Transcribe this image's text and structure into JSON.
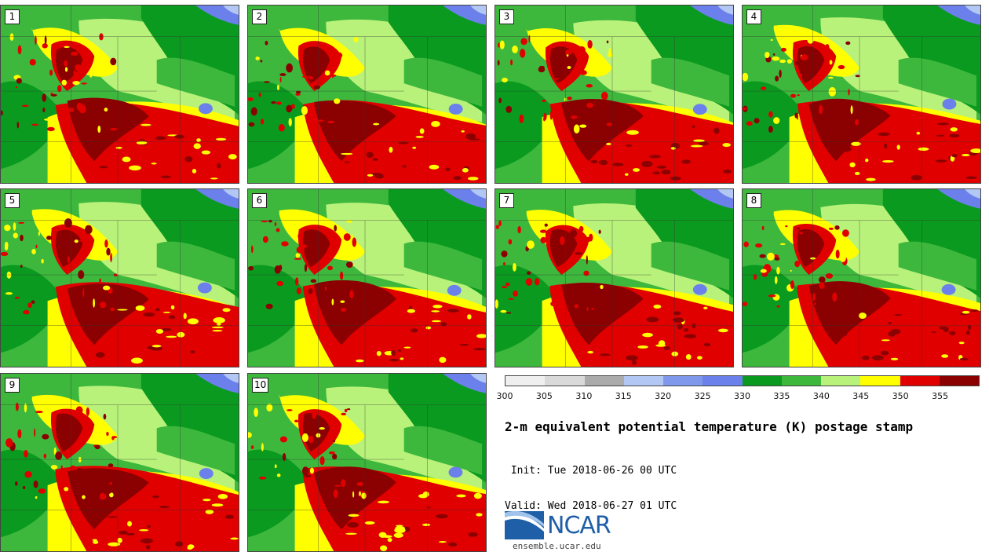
{
  "panels": [
    {
      "label": "1"
    },
    {
      "label": "2"
    },
    {
      "label": "3"
    },
    {
      "label": "4"
    },
    {
      "label": "5"
    },
    {
      "label": "6"
    },
    {
      "label": "7"
    },
    {
      "label": "8"
    },
    {
      "label": "9"
    },
    {
      "label": "10"
    }
  ],
  "colorbar": {
    "colors": [
      "#efefef",
      "#d9d9d9",
      "#ababab",
      "#b3c7f5",
      "#7f98ec",
      "#6b80eb",
      "#0a9a1f",
      "#3db83d",
      "#b9f27a",
      "#ffff00",
      "#e00000",
      "#8b0000"
    ],
    "tick_labels": [
      "300",
      "305",
      "310",
      "315",
      "320",
      "325",
      "330",
      "335",
      "340",
      "345",
      "350",
      "355"
    ]
  },
  "title": "2-m equivalent potential temperature (K) postage stamp",
  "init": " Init: Tue 2018-06-26 00 UTC",
  "valid": "Valid: Wed 2018-06-27 01 UTC",
  "logo": {
    "text": "NCAR",
    "site": "ensemble.ucar.edu"
  }
}
